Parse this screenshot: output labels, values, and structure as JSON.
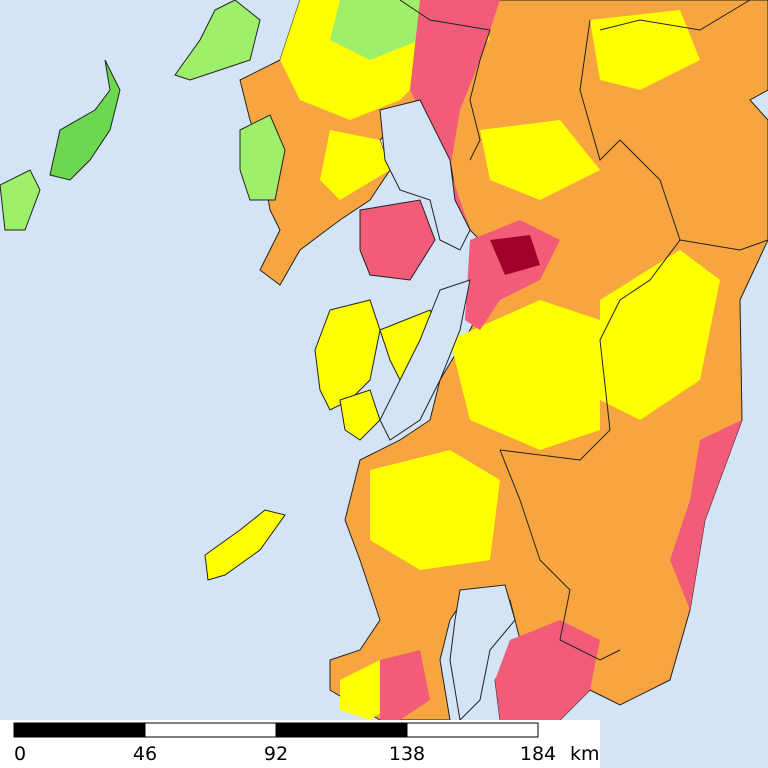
{
  "scale_bar": {
    "ticks": [
      0,
      46,
      92,
      138,
      184
    ],
    "unit": "km"
  }
}
